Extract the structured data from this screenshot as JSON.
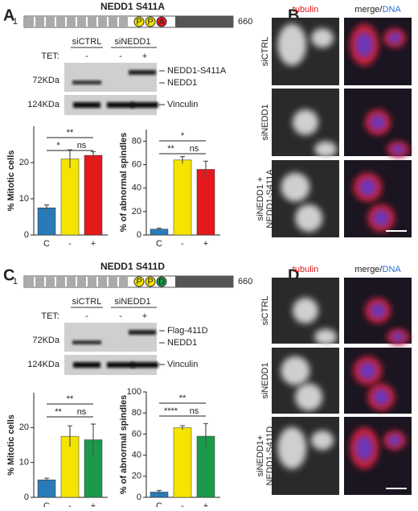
{
  "panels": [
    {
      "letter": "A",
      "title": "NEDD1 S411A",
      "domain": {
        "start": "1",
        "end": "660",
        "sites": [
          "P",
          "P",
          "A"
        ],
        "site_colors": [
          "#f5e400",
          "#f5e400",
          "#e3191c"
        ]
      },
      "blot": {
        "lanes": [
          "siCTRL",
          "siNEDD1"
        ],
        "tet_label": "TET:",
        "tet": [
          "-",
          "-",
          "+"
        ],
        "markers": [
          "72KDa",
          "124KDa"
        ],
        "bands": [
          "NEDD1-S411A",
          "NEDD1",
          "Vinculin"
        ]
      },
      "images": {
        "letter": "B",
        "channels": [
          "tubulin",
          "merge/",
          "DNA"
        ],
        "rows": [
          [
            "siCTRL"
          ],
          [
            "siNEDD1"
          ],
          [
            "siNEDD1 +",
            "NEDD1-S411A"
          ]
        ]
      }
    },
    {
      "letter": "C",
      "title": "NEDD1 S411D",
      "domain": {
        "start": "1",
        "end": "660",
        "sites": [
          "P",
          "P",
          "D"
        ],
        "site_colors": [
          "#f5e400",
          "#f5e400",
          "#1a9a4a"
        ]
      },
      "blot": {
        "lanes": [
          "siCTRL",
          "siNEDD1"
        ],
        "tet_label": "TET:",
        "tet": [
          "-",
          "-",
          "+"
        ],
        "markers": [
          "72KDa",
          "124KDa"
        ],
        "bands": [
          "Flag-411D",
          "NEDD1",
          "Vinculin"
        ]
      },
      "images": {
        "letter": "D",
        "channels": [
          "tubulin",
          "merge/",
          "DNA"
        ],
        "rows": [
          [
            "siCTRL"
          ],
          [
            "siNEDD1"
          ],
          [
            "siNEDD1+",
            "NEDD1-S411D"
          ]
        ]
      }
    }
  ],
  "chart_data": [
    {
      "type": "bar",
      "y_label": "% Mitotic cells",
      "categories": [
        "C",
        "-",
        "+"
      ],
      "values": [
        7.5,
        21,
        22
      ],
      "errors": [
        0.8,
        2.5,
        1
      ],
      "colors": [
        "#2a7ab8",
        "#f5e400",
        "#e3191c"
      ],
      "ylim": [
        0,
        30
      ],
      "yticks": [
        0,
        10,
        20
      ],
      "significance": [
        {
          "label": "*",
          "between": [
            "C",
            "-"
          ]
        },
        {
          "label": "ns",
          "between": [
            "-",
            "+"
          ]
        },
        {
          "label": "**",
          "between": [
            "C",
            "+"
          ]
        }
      ]
    },
    {
      "type": "bar",
      "y_label": "% of abnormal spindles",
      "categories": [
        "C",
        "-",
        "+"
      ],
      "values": [
        5,
        64,
        56
      ],
      "errors": [
        0.8,
        3,
        7
      ],
      "colors": [
        "#2a7ab8",
        "#f5e400",
        "#e3191c"
      ],
      "ylim": [
        0,
        90
      ],
      "yticks": [
        0,
        20,
        40,
        60,
        80
      ],
      "significance": [
        {
          "label": "**",
          "between": [
            "C",
            "-"
          ]
        },
        {
          "label": "ns",
          "between": [
            "-",
            "+"
          ]
        },
        {
          "label": "*",
          "between": [
            "C",
            "+"
          ]
        }
      ]
    },
    {
      "type": "bar",
      "y_label": "% Mitotic cells",
      "categories": [
        "C",
        "-",
        "+"
      ],
      "values": [
        5,
        17.5,
        16.5
      ],
      "errors": [
        0.5,
        3,
        4.5
      ],
      "colors": [
        "#2a7ab8",
        "#f5e400",
        "#1a9a4a"
      ],
      "ylim": [
        0,
        30
      ],
      "yticks": [
        0,
        10,
        20
      ],
      "significance": [
        {
          "label": "**",
          "between": [
            "C",
            "-"
          ]
        },
        {
          "label": "ns",
          "between": [
            "-",
            "+"
          ]
        },
        {
          "label": "**",
          "between": [
            "C",
            "+"
          ]
        }
      ]
    },
    {
      "type": "bar",
      "y_label": "% of abnormal spindles",
      "categories": [
        "C",
        "-",
        "+"
      ],
      "values": [
        5,
        66,
        58
      ],
      "errors": [
        1.5,
        2,
        12
      ],
      "colors": [
        "#2a7ab8",
        "#f5e400",
        "#1a9a4a"
      ],
      "ylim": [
        0,
        100
      ],
      "yticks": [
        0,
        20,
        40,
        60,
        80,
        100
      ],
      "significance": [
        {
          "label": "****",
          "between": [
            "C",
            "-"
          ]
        },
        {
          "label": "ns",
          "between": [
            "-",
            "+"
          ]
        },
        {
          "label": "**",
          "between": [
            "C",
            "+"
          ]
        }
      ]
    }
  ]
}
